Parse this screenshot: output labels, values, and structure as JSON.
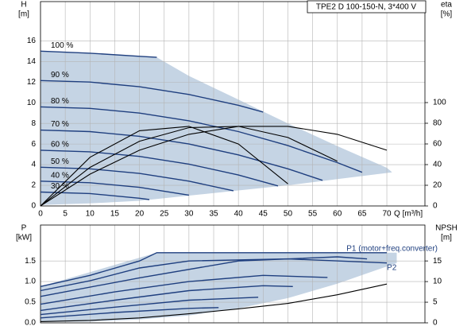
{
  "chart_data": [
    {
      "type": "line",
      "title": "TPE2 D 100-150-N, 3*400 V",
      "xlabel": "Q [m³/h]",
      "ylabel": "H",
      "yunit": "[m]",
      "y2label": "eta",
      "y2unit": "[%]",
      "xlim": [
        0,
        77.7
      ],
      "xticks": [
        0,
        5,
        10,
        15,
        20,
        25,
        30,
        35,
        40,
        45,
        50,
        55,
        60,
        65,
        70
      ],
      "ylim": [
        0,
        19.8
      ],
      "yticks": [
        0,
        2,
        4,
        6,
        8,
        10,
        12,
        14,
        16
      ],
      "y2lim": [
        0,
        197.7
      ],
      "y2ticks": [
        0,
        20,
        40,
        60,
        80,
        100
      ],
      "grid": true,
      "envelope": {
        "color": "#c5d4e4",
        "x": [
          0,
          23.5,
          30,
          40,
          50,
          60,
          70,
          71,
          71,
          60,
          50,
          40,
          30,
          20,
          10,
          0
        ],
        "values": [
          15,
          14.4,
          12.6,
          10.3,
          8,
          5.8,
          3.7,
          3.3,
          3.25,
          2.6,
          2.0,
          1.5,
          1.0,
          0.5,
          0.25,
          0.1
        ]
      },
      "series": [
        {
          "name": "100 %",
          "color": "#1f3f7f",
          "x": [
            0,
            10,
            20,
            23.5
          ],
          "values": [
            15,
            14.8,
            14.5,
            14.4
          ]
        },
        {
          "name": "90 %",
          "color": "#1f3f7f",
          "x": [
            0,
            10,
            20,
            30,
            40,
            45
          ],
          "values": [
            12.15,
            12.0,
            11.55,
            10.8,
            9.75,
            9.1
          ]
        },
        {
          "name": "80 %",
          "color": "#1f3f7f",
          "x": [
            0,
            10,
            20,
            30,
            40,
            50,
            60,
            65
          ],
          "values": [
            9.6,
            9.45,
            9.0,
            8.25,
            7.2,
            5.85,
            4.2,
            3.26
          ]
        },
        {
          "name": "70 %",
          "color": "#1f3f7f",
          "x": [
            0,
            10,
            20,
            30,
            40,
            50,
            57
          ],
          "values": [
            7.35,
            7.2,
            6.75,
            6.0,
            4.95,
            3.6,
            2.48
          ]
        },
        {
          "name": "60 %",
          "color": "#1f3f7f",
          "x": [
            0,
            10,
            20,
            30,
            40,
            48
          ],
          "values": [
            5.4,
            5.25,
            4.8,
            4.05,
            3.0,
            1.94
          ]
        },
        {
          "name": "50 %",
          "color": "#1f3f7f",
          "x": [
            0,
            10,
            20,
            30,
            39
          ],
          "values": [
            3.75,
            3.6,
            3.15,
            2.4,
            1.47
          ]
        },
        {
          "name": "40 %",
          "color": "#1f3f7f",
          "x": [
            0,
            10,
            20,
            30
          ],
          "values": [
            2.4,
            2.25,
            1.8,
            1.05
          ]
        },
        {
          "name": "30 %",
          "color": "#1f3f7f",
          "x": [
            0,
            10,
            20,
            22
          ],
          "values": [
            1.35,
            1.2,
            0.75,
            0.62
          ]
        },
        {
          "axis": "y2",
          "color": "#000000",
          "x": [
            0,
            10,
            20,
            30,
            40,
            50,
            60,
            70
          ],
          "values": [
            0,
            30.8,
            53.9,
            69.3,
            77,
            77,
            69.3,
            53.9
          ]
        },
        {
          "axis": "y2",
          "color": "#000000",
          "x": [
            0,
            10,
            20,
            30,
            40,
            50,
            60
          ],
          "values": [
            0,
            37.3,
            62.6,
            75.8,
            77,
            66.2,
            43.3
          ]
        },
        {
          "axis": "y2",
          "color": "#000000",
          "x": [
            0,
            10,
            20,
            30,
            40,
            50
          ],
          "values": [
            0,
            47.1,
            72.8,
            77,
            59.9,
            21.4
          ]
        }
      ]
    },
    {
      "type": "line",
      "ylabel": "P",
      "yunit": "[kW]",
      "y2label": "NPSH",
      "y2unit": "[m]",
      "xlim": [
        0,
        77.7
      ],
      "ylim": [
        0,
        2.37
      ],
      "yticks": [
        {
          "value": 0,
          "label": "0.0"
        },
        {
          "value": 0.5,
          "label": "0.5"
        },
        {
          "value": 1,
          "label": "1.0"
        },
        {
          "value": 1.5,
          "label": "1.5"
        }
      ],
      "y2lim": [
        0,
        23.7
      ],
      "y2ticks": [
        0,
        5,
        10,
        15
      ],
      "grid": true,
      "envelope": {
        "color": "#c5d4e4",
        "x": [
          0,
          23.5,
          72,
          72,
          60,
          50,
          40,
          30,
          20,
          10,
          0
        ],
        "values": [
          0.88,
          1.7,
          1.7,
          1.45,
          0.95,
          0.6,
          0.35,
          0.18,
          0.08,
          0.03,
          0.02
        ]
      },
      "series": [
        {
          "name": "P1 (motor+freq.converter)",
          "color": "#1f3f7f",
          "x": [
            0,
            10,
            20,
            23.5,
            70
          ],
          "values": [
            0.88,
            1.15,
            1.5,
            1.7,
            1.7
          ]
        },
        {
          "name": "P2",
          "color": "#1f3f7f",
          "x": [
            0,
            10,
            20,
            30,
            50,
            70
          ],
          "values": [
            0.78,
            1.02,
            1.33,
            1.5,
            1.55,
            1.45
          ]
        },
        {
          "color": "#1f3f7f",
          "x": [
            0,
            20,
            40,
            60,
            66
          ],
          "values": [
            0.64,
            1.09,
            1.5,
            1.6,
            1.55
          ]
        },
        {
          "color": "#1f3f7f",
          "x": [
            0,
            15,
            30,
            45,
            58
          ],
          "values": [
            0.45,
            0.75,
            1.0,
            1.15,
            1.1
          ]
        },
        {
          "color": "#1f3f7f",
          "x": [
            0,
            15,
            30,
            45,
            51
          ],
          "values": [
            0.3,
            0.55,
            0.78,
            0.9,
            0.88
          ]
        },
        {
          "color": "#1f3f7f",
          "x": [
            0,
            15,
            30,
            44
          ],
          "values": [
            0.2,
            0.38,
            0.55,
            0.62
          ]
        },
        {
          "color": "#1f3f7f",
          "x": [
            0,
            15,
            30,
            36
          ],
          "values": [
            0.12,
            0.25,
            0.35,
            0.37
          ]
        },
        {
          "axis": "y2",
          "color": "#000000",
          "x": [
            0,
            10,
            20,
            30,
            40,
            50,
            60,
            70
          ],
          "values": [
            0.3,
            0.6,
            1.2,
            2.2,
            3.4,
            4.7,
            6.8,
            9.4
          ]
        }
      ]
    }
  ]
}
